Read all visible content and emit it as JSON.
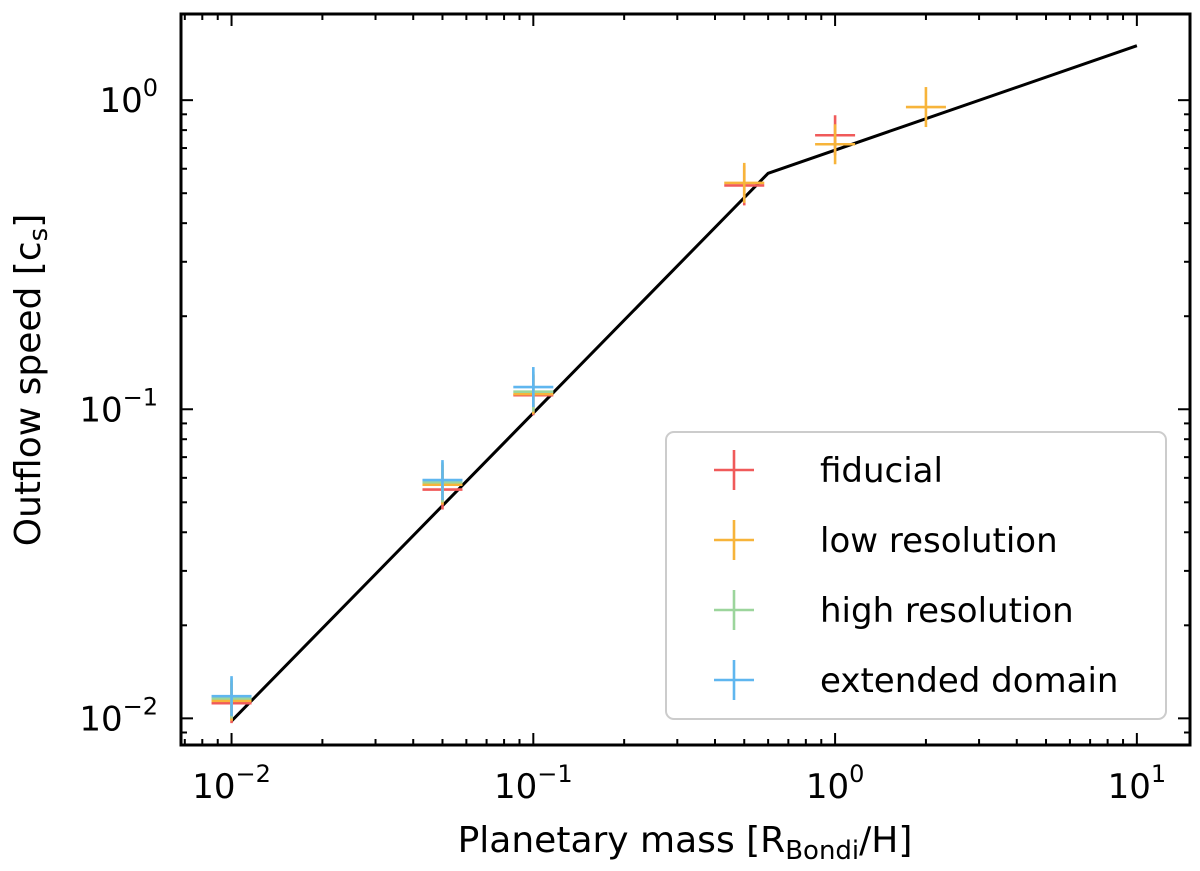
{
  "chart_data": {
    "type": "scatter",
    "xscale": "log",
    "yscale": "log",
    "xlim": [
      0.0068,
      15
    ],
    "ylim": [
      0.0082,
      1.9
    ],
    "xlabel": {
      "main": "Planetary mass [R",
      "sub": "Bondi",
      "tail": "/H]"
    },
    "ylabel": {
      "main": "Outflow speed [c",
      "sub": "s",
      "tail": "]"
    },
    "x_ticks": [
      {
        "value": 0.01,
        "base": "10",
        "exp": "−2"
      },
      {
        "value": 0.1,
        "base": "10",
        "exp": "−1"
      },
      {
        "value": 1,
        "base": "10",
        "exp": "0"
      },
      {
        "value": 10,
        "base": "10",
        "exp": "1"
      }
    ],
    "y_ticks": [
      {
        "value": 0.01,
        "base": "10",
        "exp": "−2"
      },
      {
        "value": 0.1,
        "base": "10",
        "exp": "−1"
      },
      {
        "value": 1,
        "base": "10",
        "exp": "0"
      }
    ],
    "fit_line": {
      "color": "#000000",
      "x": [
        0.01,
        0.6,
        10
      ],
      "y": [
        0.0098,
        0.58,
        1.5
      ]
    },
    "legend_position": "lower right",
    "series": [
      {
        "name": "fiducial",
        "color": "#f05a5a",
        "points": [
          {
            "x": 0.01,
            "y": 0.0112
          },
          {
            "x": 0.05,
            "y": 0.055
          },
          {
            "x": 0.1,
            "y": 0.111
          },
          {
            "x": 0.5,
            "y": 0.53
          },
          {
            "x": 1,
            "y": 0.77
          }
        ]
      },
      {
        "name": "low resolution",
        "color": "#f7b43a",
        "points": [
          {
            "x": 0.01,
            "y": 0.0114
          },
          {
            "x": 0.05,
            "y": 0.057
          },
          {
            "x": 0.1,
            "y": 0.112
          },
          {
            "x": 0.5,
            "y": 0.54
          },
          {
            "x": 1,
            "y": 0.72
          },
          {
            "x": 2,
            "y": 0.95
          }
        ]
      },
      {
        "name": "high resolution",
        "color": "#9cd59c",
        "points": [
          {
            "x": 0.01,
            "y": 0.0116
          },
          {
            "x": 0.05,
            "y": 0.058
          },
          {
            "x": 0.1,
            "y": 0.114
          }
        ]
      },
      {
        "name": "extended domain",
        "color": "#5fb6ef",
        "points": [
          {
            "x": 0.01,
            "y": 0.0118
          },
          {
            "x": 0.05,
            "y": 0.059
          },
          {
            "x": 0.1,
            "y": 0.118
          }
        ]
      }
    ]
  }
}
